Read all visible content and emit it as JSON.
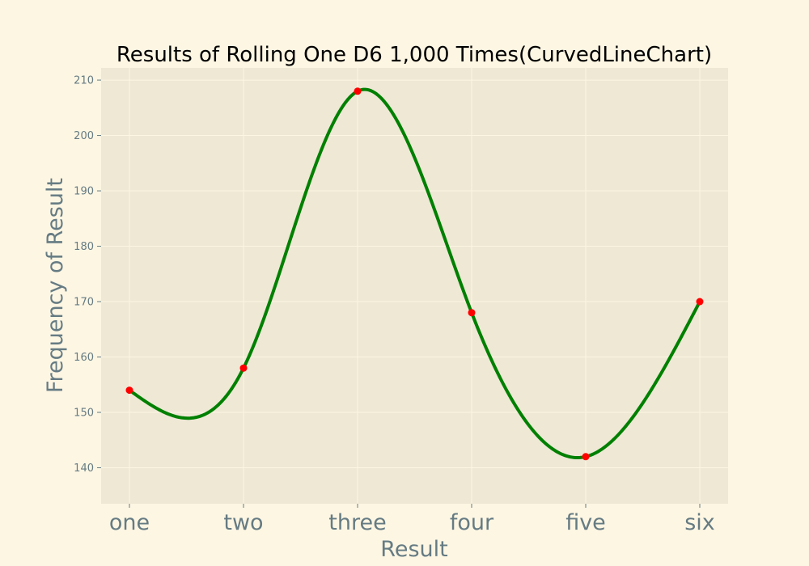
{
  "colors": {
    "figure_background": "#fdf6e3",
    "plot_background": "#eee8d5",
    "grid": "#fdf6e3",
    "line": "#008000",
    "marker": "#ff0000",
    "text_muted": "#657b83",
    "title_text": "#000000"
  },
  "chart_data": {
    "type": "line",
    "title": "Results of Rolling One D6 1,000 Times(CurvedLineChart)",
    "xlabel": "Result",
    "ylabel": "Frequency of Result",
    "categories": [
      "one",
      "two",
      "three",
      "four",
      "five",
      "six"
    ],
    "values": [
      154,
      158,
      208,
      168,
      142,
      170
    ],
    "smoothed": true,
    "markers": true,
    "grid": true,
    "yticks": [
      140,
      150,
      160,
      170,
      180,
      190,
      200,
      210
    ],
    "ylim": [
      133.5,
      212.2
    ]
  }
}
